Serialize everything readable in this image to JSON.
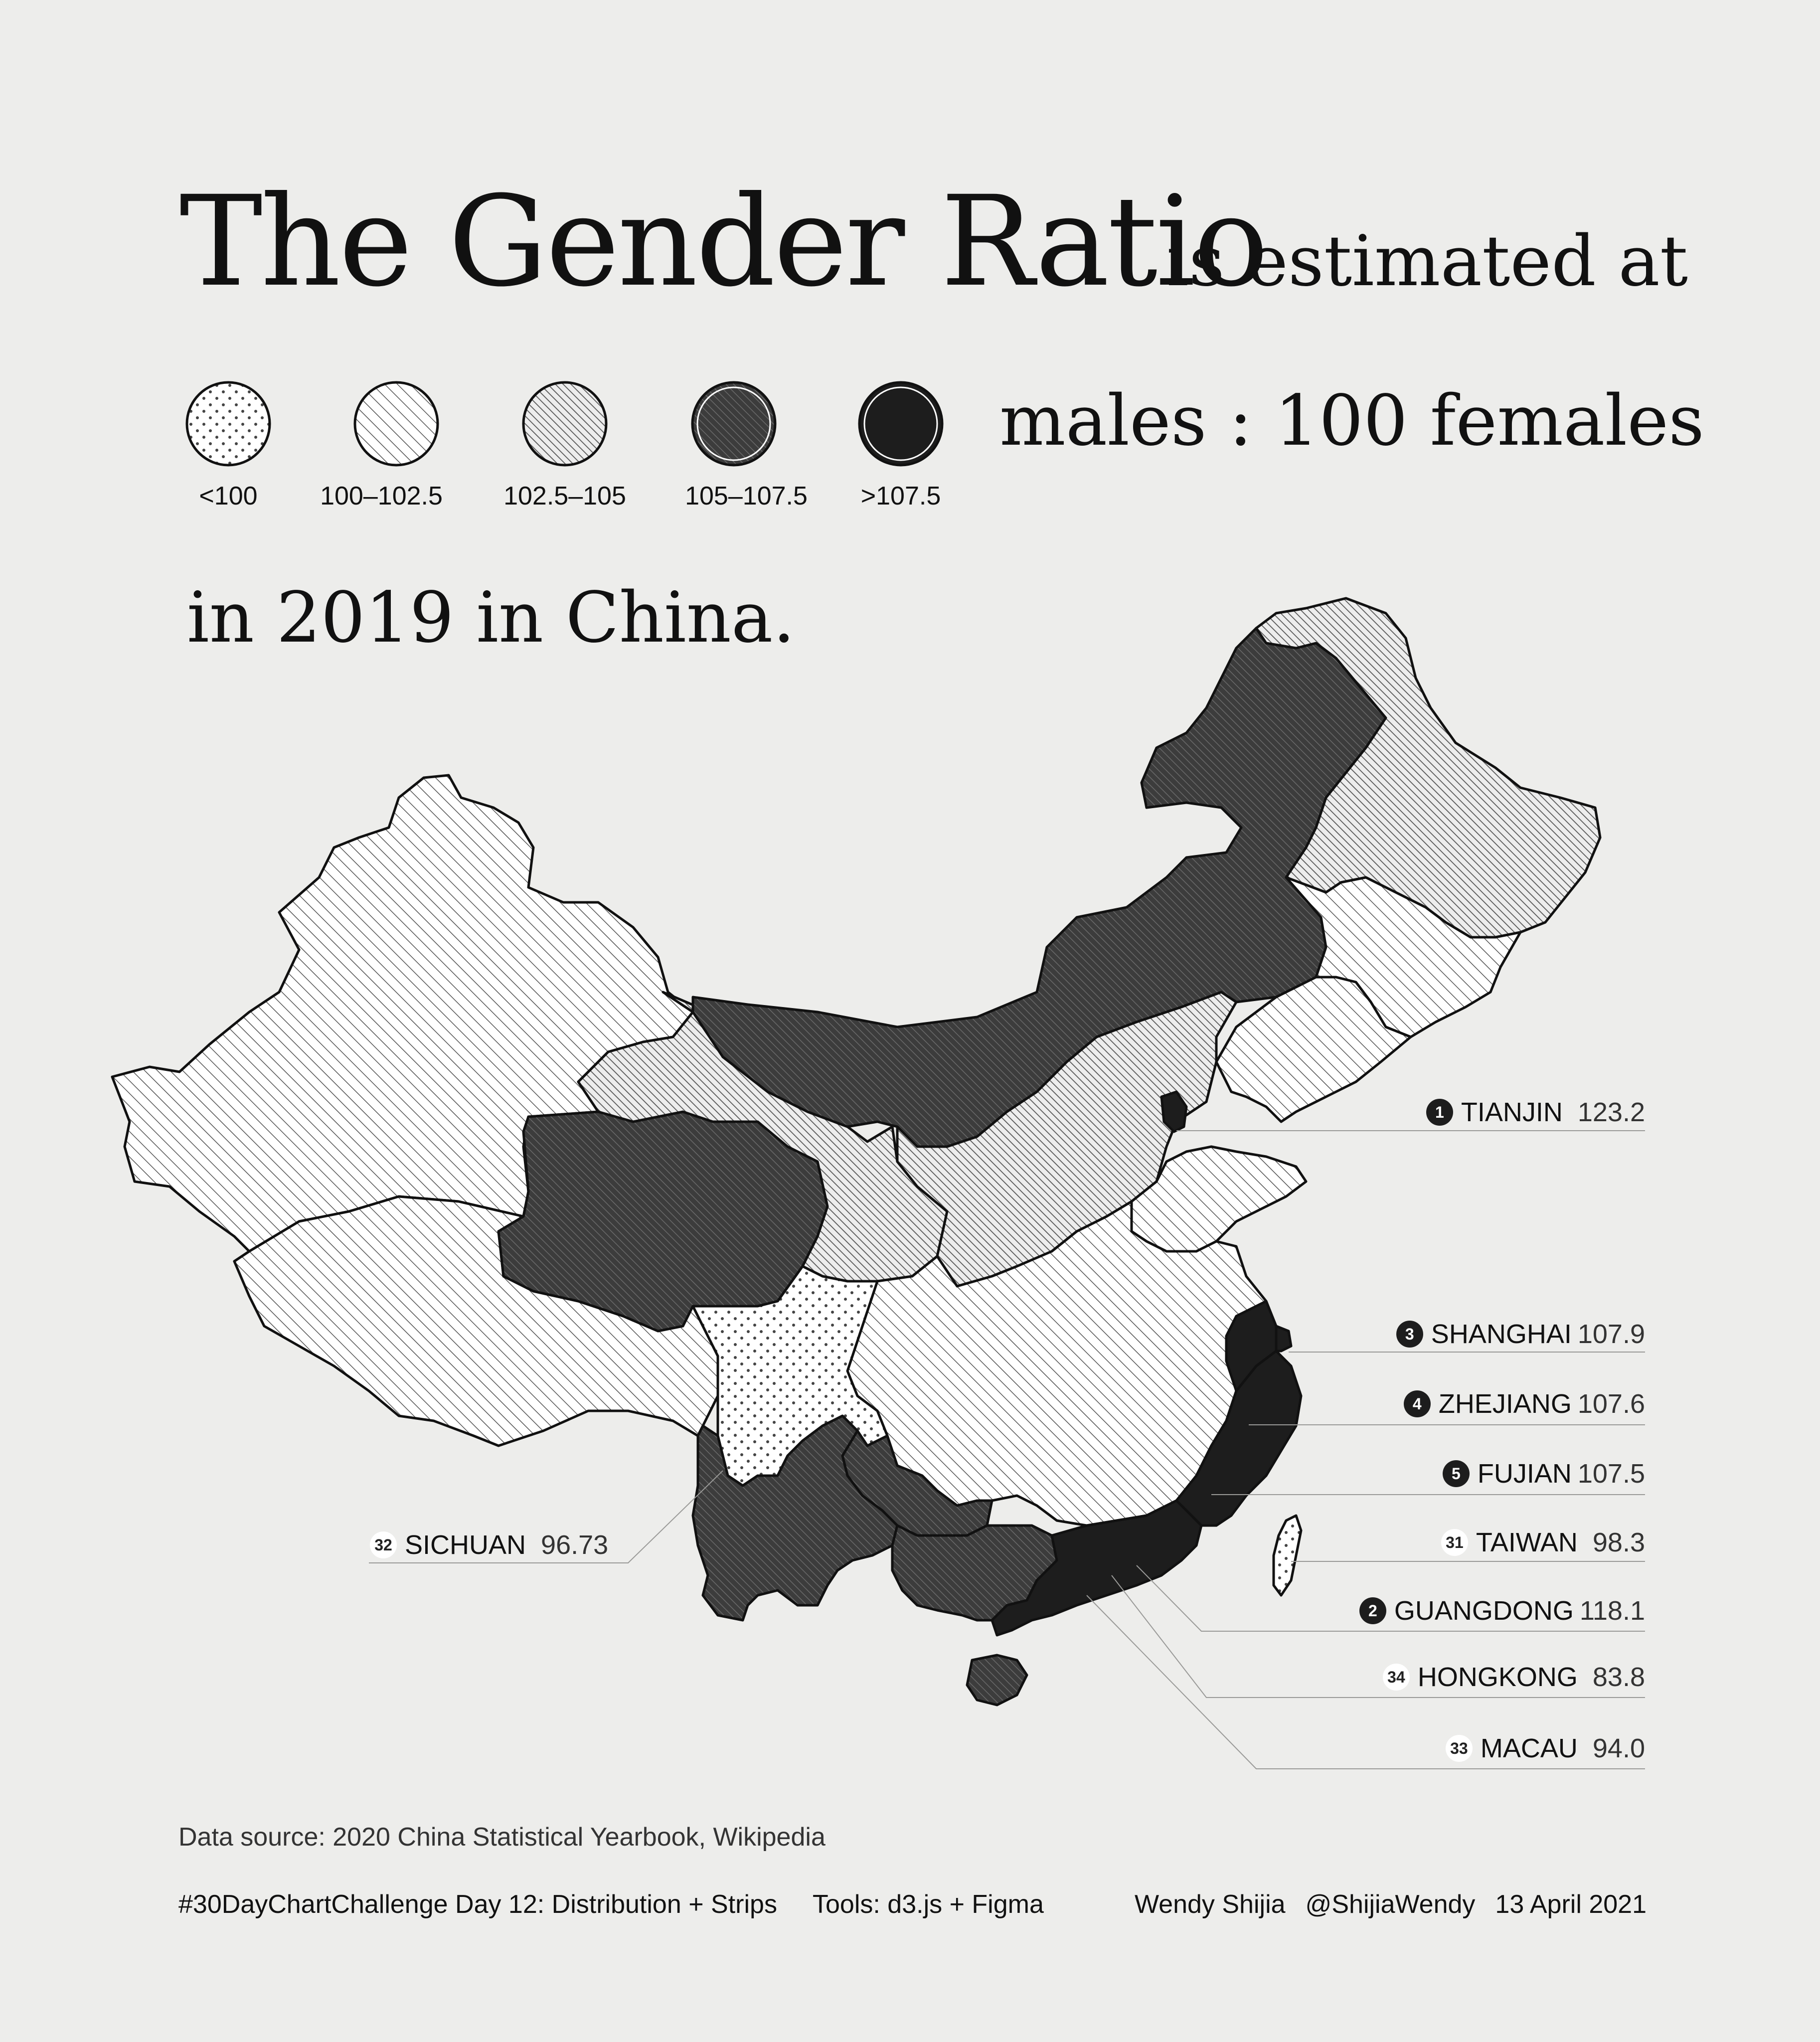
{
  "title": {
    "main": "The Gender Ratio",
    "tail": "is estimated at",
    "mid": "males : 100 females",
    "end": "in 2019 in China."
  },
  "legend": [
    {
      "label": "<100",
      "pattern": "dots",
      "fill": "#ffffff"
    },
    {
      "label": "100–102.5",
      "pattern": "sparse-hatch",
      "fill": "#ffffff"
    },
    {
      "label": "102.5–105",
      "pattern": "dense-hatch",
      "fill": "#e2e2e2"
    },
    {
      "label": "105–107.5",
      "pattern": "dark-hatch",
      "fill": "#4a4a4a"
    },
    {
      "label": ">107.5",
      "pattern": "solid",
      "fill": "#1d1d1d"
    }
  ],
  "callouts": [
    {
      "rank": "1",
      "name": "TIANJIN",
      "value": "123.2",
      "badge": "dark"
    },
    {
      "rank": "3",
      "name": "SHANGHAI",
      "value": "107.9",
      "badge": "dark"
    },
    {
      "rank": "4",
      "name": "ZHEJIANG",
      "value": "107.6",
      "badge": "dark"
    },
    {
      "rank": "5",
      "name": "FUJIAN",
      "value": "107.5",
      "badge": "dark"
    },
    {
      "rank": "31",
      "name": "TAIWAN",
      "value": "98.3",
      "badge": "light"
    },
    {
      "rank": "2",
      "name": "GUANGDONG",
      "value": "118.1",
      "badge": "dark"
    },
    {
      "rank": "34",
      "name": "HONGKONG",
      "value": "83.8",
      "badge": "light"
    },
    {
      "rank": "33",
      "name": "MACAU",
      "value": "94.0",
      "badge": "light"
    },
    {
      "rank": "32",
      "name": "SICHUAN",
      "value": "96.73",
      "badge": "light"
    }
  ],
  "regions": [
    {
      "name": "Xinjiang",
      "class": "sparse-hatch"
    },
    {
      "name": "Tibet",
      "class": "sparse-hatch"
    },
    {
      "name": "Qinghai",
      "class": "dark-hatch"
    },
    {
      "name": "Gansu",
      "class": "dense-hatch"
    },
    {
      "name": "Inner Mongolia",
      "class": "dark-hatch"
    },
    {
      "name": "Heilongjiang",
      "class": "dense-hatch"
    },
    {
      "name": "Jilin",
      "class": "sparse-hatch"
    },
    {
      "name": "Liaoning",
      "class": "sparse-hatch"
    },
    {
      "name": "Sichuan",
      "class": "dots"
    },
    {
      "name": "Yunnan",
      "class": "dark-hatch"
    },
    {
      "name": "Guangxi",
      "class": "dark-hatch"
    },
    {
      "name": "Guangdong",
      "class": "solid"
    },
    {
      "name": "Fujian",
      "class": "solid"
    },
    {
      "name": "Zhejiang",
      "class": "solid"
    },
    {
      "name": "Shanghai",
      "class": "solid"
    },
    {
      "name": "Tianjin",
      "class": "solid"
    },
    {
      "name": "Hainan",
      "class": "dark-hatch"
    },
    {
      "name": "Taiwan",
      "class": "dots"
    }
  ],
  "source": "Data source: 2020 China Statistical Yearbook, Wikipedia",
  "footer": {
    "challenge": "#30DayChartChallenge Day 12: Distribution + Strips",
    "tools": "Tools: d3.js + Figma",
    "author": "Wendy Shijia",
    "handle": "@ShijiaWendy",
    "date": "13 April 2021"
  }
}
